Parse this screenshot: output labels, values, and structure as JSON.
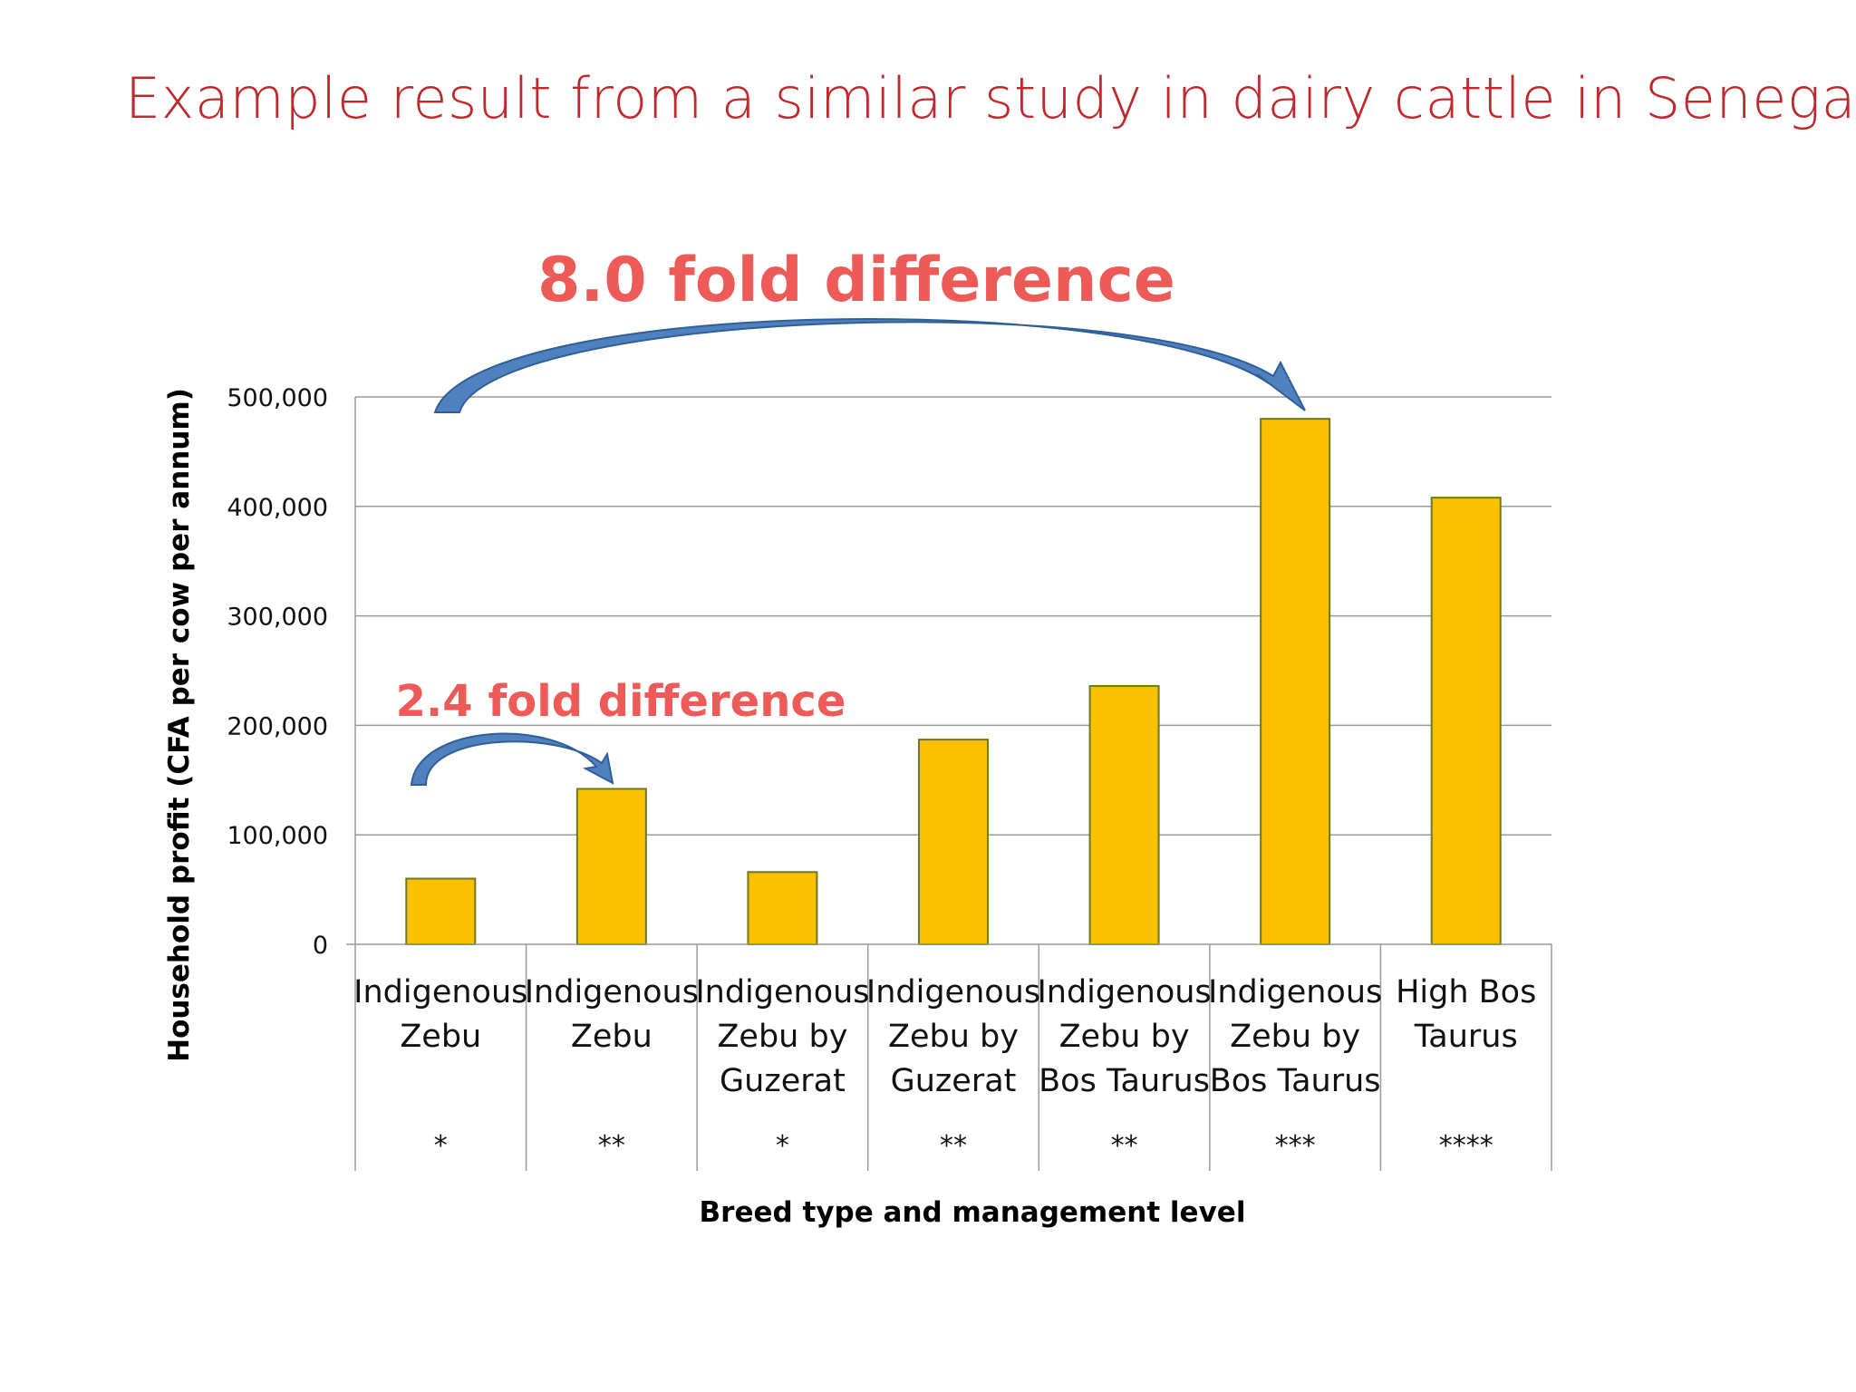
{
  "title": "Example result from a similar study in dairy cattle in Senegal",
  "colors": {
    "title": "#c0282c",
    "bar_fill": "#fbc100",
    "bar_stroke": "#6b7a1e",
    "annotation": "#ee5a57",
    "arrow": "#4f80bf",
    "grid": "#9a9a9a"
  },
  "chart_data": {
    "type": "bar",
    "categories": [
      [
        "Indigenous",
        "Zebu"
      ],
      [
        "Indigenous",
        "Zebu"
      ],
      [
        "Indigenous",
        "Zebu by",
        "Guzerat"
      ],
      [
        "Indigenous",
        "Zebu by",
        "Guzerat"
      ],
      [
        "Indigenous",
        "Zebu by",
        "Bos Taurus"
      ],
      [
        "Indigenous",
        "Zebu by",
        "Bos Taurus"
      ],
      [
        "High Bos",
        "Taurus"
      ]
    ],
    "management_levels": [
      "*",
      "**",
      "*",
      "**",
      "**",
      "***",
      "****"
    ],
    "values": [
      60000,
      142000,
      66000,
      187000,
      236000,
      480000,
      408000
    ],
    "ylabel": "Household profit (CFA per cow per annum)",
    "xlabel": "Breed type and management level",
    "ylim": [
      0,
      500000
    ],
    "yticks": [
      0,
      100000,
      200000,
      300000,
      400000,
      500000
    ],
    "ytick_labels": [
      "0",
      "100,000",
      "200,000",
      "300,000",
      "400,000",
      "500,000"
    ],
    "grid": true,
    "legend": "none",
    "annotations": [
      {
        "text": "8.0 fold difference",
        "from_category": 0,
        "to_category": 5
      },
      {
        "text": "2.4 fold difference",
        "from_category": 0,
        "to_category": 1
      }
    ]
  }
}
